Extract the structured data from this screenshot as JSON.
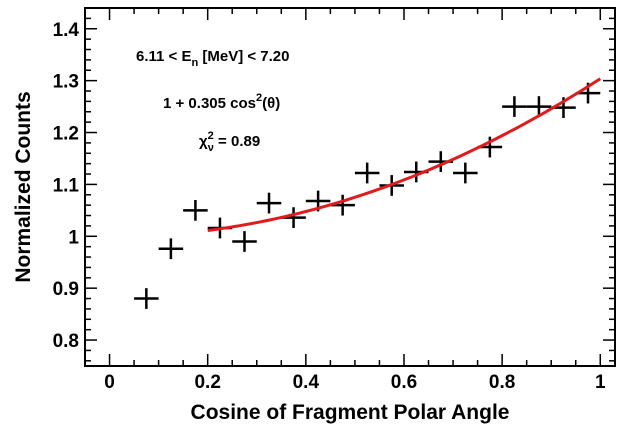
{
  "chart_data": {
    "type": "scatter",
    "xlabel": "Cosine of Fragment Polar Angle",
    "ylabel": "Normalized Counts",
    "xlim": [
      -0.05,
      1.03
    ],
    "ylim": [
      0.75,
      1.44
    ],
    "x_ticks": [
      "0",
      "0.2",
      "0.4",
      "0.6",
      "0.8",
      "1"
    ],
    "y_ticks": [
      "0.8",
      "0.9",
      "1",
      "1.1",
      "1.2",
      "1.3",
      "1.4"
    ],
    "grid": false,
    "series": [
      {
        "type": "points_with_errorbars",
        "x": [
          0.075,
          0.125,
          0.175,
          0.225,
          0.275,
          0.325,
          0.375,
          0.425,
          0.475,
          0.525,
          0.575,
          0.625,
          0.675,
          0.725,
          0.775,
          0.825,
          0.875,
          0.925,
          0.975
        ],
        "y": [
          0.88,
          0.976,
          1.05,
          1.016,
          0.99,
          1.064,
          1.036,
          1.068,
          1.06,
          1.122,
          1.098,
          1.124,
          1.144,
          1.122,
          1.172,
          1.25,
          1.25,
          1.248,
          1.276
        ],
        "y_err": [
          0.02,
          0.02,
          0.02,
          0.02,
          0.02,
          0.02,
          0.02,
          0.02,
          0.02,
          0.02,
          0.02,
          0.02,
          0.02,
          0.02,
          0.02,
          0.02,
          0.02,
          0.02,
          0.02
        ],
        "x_err": 0.025,
        "color": "#000000"
      },
      {
        "type": "fit_line",
        "function": "A*(1 + B*x^2)",
        "A": 0.999,
        "B": 0.305,
        "x_range": [
          0.2,
          1.0
        ],
        "color": "#e31a1c"
      }
    ],
    "annotations": {
      "energy_range": {
        "pre": "6.11 < E",
        "sub": "n",
        "post": " [MeV] < 7.20"
      },
      "fit_formula": {
        "pre": "1 + 0.305 cos",
        "sup": "2",
        "post": "(θ)"
      },
      "chi2": {
        "pre": "χ",
        "sup": "2",
        "sub": "ν",
        "post": " = 0.89"
      }
    }
  }
}
